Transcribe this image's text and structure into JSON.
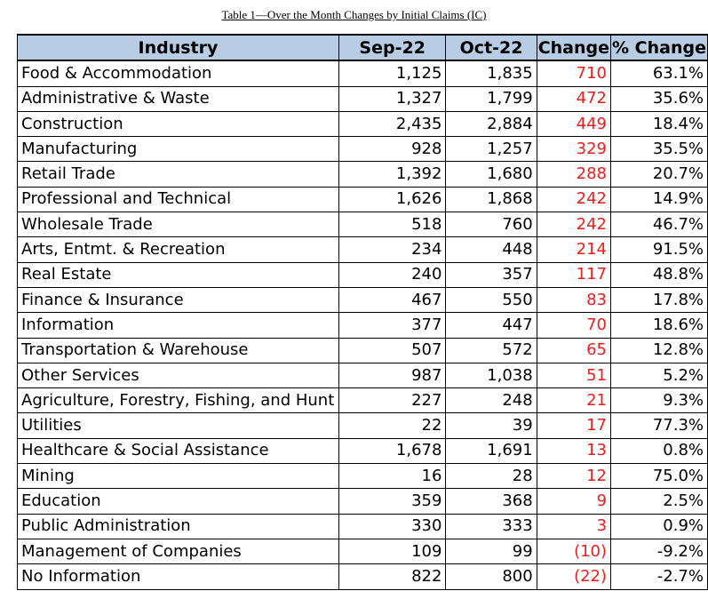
{
  "caption": "Table 1—Over the Month Changes by Initial Claims (IC)",
  "columns": {
    "industry": "Industry",
    "sep": "Sep-22",
    "oct": "Oct-22",
    "change": "Change",
    "pct": "% Change"
  },
  "rows": [
    {
      "industry": "Food & Accommodation",
      "sep": "1,125",
      "oct": "1,835",
      "change": "710",
      "pct": "63.1%"
    },
    {
      "industry": "Administrative & Waste",
      "sep": "1,327",
      "oct": "1,799",
      "change": "472",
      "pct": "35.6%"
    },
    {
      "industry": "Construction",
      "sep": "2,435",
      "oct": "2,884",
      "change": "449",
      "pct": "18.4%"
    },
    {
      "industry": "Manufacturing",
      "sep": "928",
      "oct": "1,257",
      "change": "329",
      "pct": "35.5%"
    },
    {
      "industry": "Retail Trade",
      "sep": "1,392",
      "oct": "1,680",
      "change": "288",
      "pct": "20.7%"
    },
    {
      "industry": "Professional and Technical",
      "sep": "1,626",
      "oct": "1,868",
      "change": "242",
      "pct": "14.9%"
    },
    {
      "industry": "Wholesale Trade",
      "sep": "518",
      "oct": "760",
      "change": "242",
      "pct": "46.7%"
    },
    {
      "industry": "Arts, Entmt. & Recreation",
      "sep": "234",
      "oct": "448",
      "change": "214",
      "pct": "91.5%"
    },
    {
      "industry": "Real Estate",
      "sep": "240",
      "oct": "357",
      "change": "117",
      "pct": "48.8%"
    },
    {
      "industry": "Finance & Insurance",
      "sep": "467",
      "oct": "550",
      "change": "83",
      "pct": "17.8%"
    },
    {
      "industry": "Information",
      "sep": "377",
      "oct": "447",
      "change": "70",
      "pct": "18.6%"
    },
    {
      "industry": "Transportation & Warehouse",
      "sep": "507",
      "oct": "572",
      "change": "65",
      "pct": "12.8%"
    },
    {
      "industry": "Other Services",
      "sep": "987",
      "oct": "1,038",
      "change": "51",
      "pct": "5.2%"
    },
    {
      "industry": "Agriculture, Forestry, Fishing, and Hunt",
      "sep": "227",
      "oct": "248",
      "change": "21",
      "pct": "9.3%"
    },
    {
      "industry": "Utilities",
      "sep": "22",
      "oct": "39",
      "change": "17",
      "pct": "77.3%"
    },
    {
      "industry": "Healthcare & Social Assistance",
      "sep": "1,678",
      "oct": "1,691",
      "change": "13",
      "pct": "0.8%"
    },
    {
      "industry": "Mining",
      "sep": "16",
      "oct": "28",
      "change": "12",
      "pct": "75.0%"
    },
    {
      "industry": "Education",
      "sep": "359",
      "oct": "368",
      "change": "9",
      "pct": "2.5%"
    },
    {
      "industry": "Public Administration",
      "sep": "330",
      "oct": "333",
      "change": "3",
      "pct": "0.9%"
    },
    {
      "industry": "Management of Companies",
      "sep": "109",
      "oct": "99",
      "change": "(10)",
      "pct": "-9.2%"
    },
    {
      "industry": "No Information",
      "sep": "822",
      "oct": "800",
      "change": "(22)",
      "pct": "-2.7%"
    }
  ],
  "colors": {
    "header_bg": "#b8cce4",
    "change_text": "#ee1c1c"
  }
}
